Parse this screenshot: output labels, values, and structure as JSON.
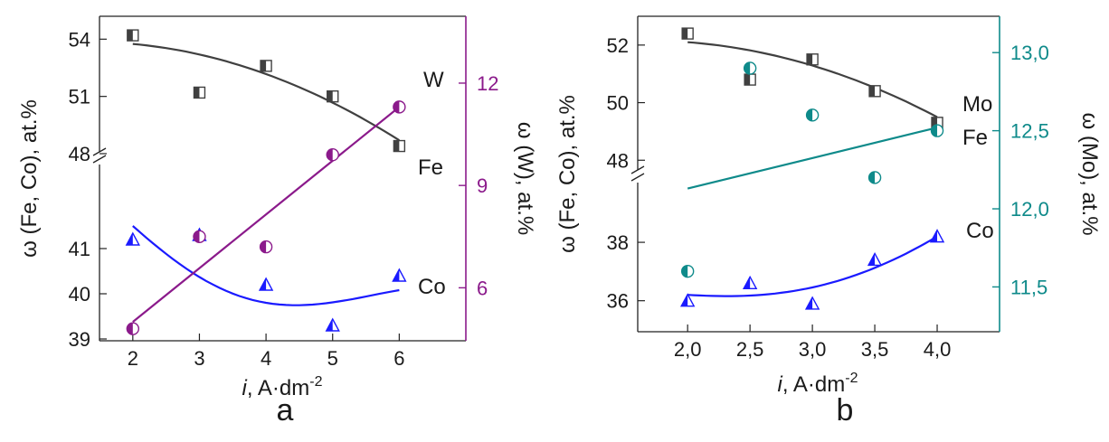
{
  "chart_data": [
    {
      "type": "scatter",
      "panel_label": "a",
      "xlabel_italic": "i",
      "xlabel_rest": ", A·dm",
      "xlabel_sup": "-2",
      "ylabel_left": "ω (Fe, Co), at.%",
      "ylabel_right": "ω (W), at.%",
      "x_ticks": [
        "2",
        "3",
        "4",
        "5",
        "6"
      ],
      "xlim": [
        1.5,
        7
      ],
      "y_left_upper_ticks": [
        "48",
        "51",
        "54"
      ],
      "y_left_upper_lim": [
        48,
        55.2
      ],
      "y_left_lower_ticks": [
        "39",
        "40",
        "41"
      ],
      "y_left_lower_lim": [
        39,
        42
      ],
      "y_right_ticks": [
        "6",
        "9",
        "12"
      ],
      "y_right_lim": [
        4.5,
        12.9
      ],
      "axis_break": true,
      "colors": {
        "Fe": "#404040",
        "Co": "#1a1aff",
        "W": "#8b1a8b"
      },
      "series": [
        {
          "name": "Fe",
          "axis": "left-upper",
          "x": [
            2,
            3,
            4,
            5,
            6
          ],
          "values": [
            54.2,
            51.2,
            52.6,
            51.0,
            48.4
          ],
          "fit_x": [
            2,
            6
          ],
          "fit_values": [
            53.75,
            48.7
          ]
        },
        {
          "name": "Co",
          "axis": "left-lower",
          "x": [
            2,
            3,
            4,
            5,
            6
          ],
          "values": [
            41.2,
            41.3,
            40.2,
            39.3,
            40.4
          ],
          "fit_x": [
            2,
            6
          ],
          "fit_values": [
            41.5,
            40.08
          ]
        },
        {
          "name": "W",
          "axis": "right",
          "x": [
            2,
            3,
            4,
            5,
            6
          ],
          "values": [
            4.8,
            7.5,
            7.2,
            9.9,
            11.3
          ],
          "fit_x": [
            2,
            6
          ],
          "fit_values": [
            5.0,
            11.3
          ]
        }
      ]
    },
    {
      "type": "scatter",
      "panel_label": "b",
      "xlabel_italic": "i",
      "xlabel_rest": ", A·dm",
      "xlabel_sup": "-2",
      "ylabel_left": "ω (Fe, Co), at.%",
      "ylabel_right": "ω (Mo), at.%",
      "x_ticks": [
        "2,0",
        "2,5",
        "3,0",
        "3,5",
        "4,0"
      ],
      "xlim": [
        1.6,
        4.5
      ],
      "y_left_upper_ticks": [
        "48",
        "50",
        "52"
      ],
      "y_left_upper_lim": [
        47.6,
        53
      ],
      "y_left_lower_ticks": [
        "36",
        "38"
      ],
      "y_left_lower_lim": [
        35,
        38.9
      ],
      "y_right_ticks": [
        "11,5",
        "12,0",
        "12,5",
        "13,0"
      ],
      "y_right_lim": [
        11.3,
        13.14
      ],
      "axis_break": true,
      "colors": {
        "Fe": "#404040",
        "Co": "#1a1aff",
        "Mo": "#0e8a8a"
      },
      "series": [
        {
          "name": "Fe",
          "axis": "left-upper",
          "x": [
            2.0,
            2.5,
            3.0,
            3.5,
            4.0
          ],
          "values": [
            52.4,
            50.8,
            51.5,
            50.4,
            49.3
          ],
          "fit_x": [
            2.0,
            4.0
          ],
          "fit_values": [
            52.1,
            49.5
          ]
        },
        {
          "name": "Co",
          "axis": "left-lower",
          "x": [
            2.0,
            2.5,
            3.0,
            3.5,
            4.0
          ],
          "values": [
            36.0,
            36.6,
            35.9,
            37.4,
            38.2
          ],
          "fit_x": [
            2.0,
            4.0
          ],
          "fit_values": [
            36.2,
            38.2
          ]
        },
        {
          "name": "Mo",
          "axis": "right",
          "x": [
            2.0,
            2.5,
            3.0,
            3.5,
            4.0
          ],
          "values": [
            11.6,
            12.9,
            12.6,
            12.2,
            12.5
          ],
          "fit_x": [
            2.0,
            4.0
          ],
          "fit_values": [
            12.13,
            12.52
          ]
        }
      ]
    }
  ]
}
